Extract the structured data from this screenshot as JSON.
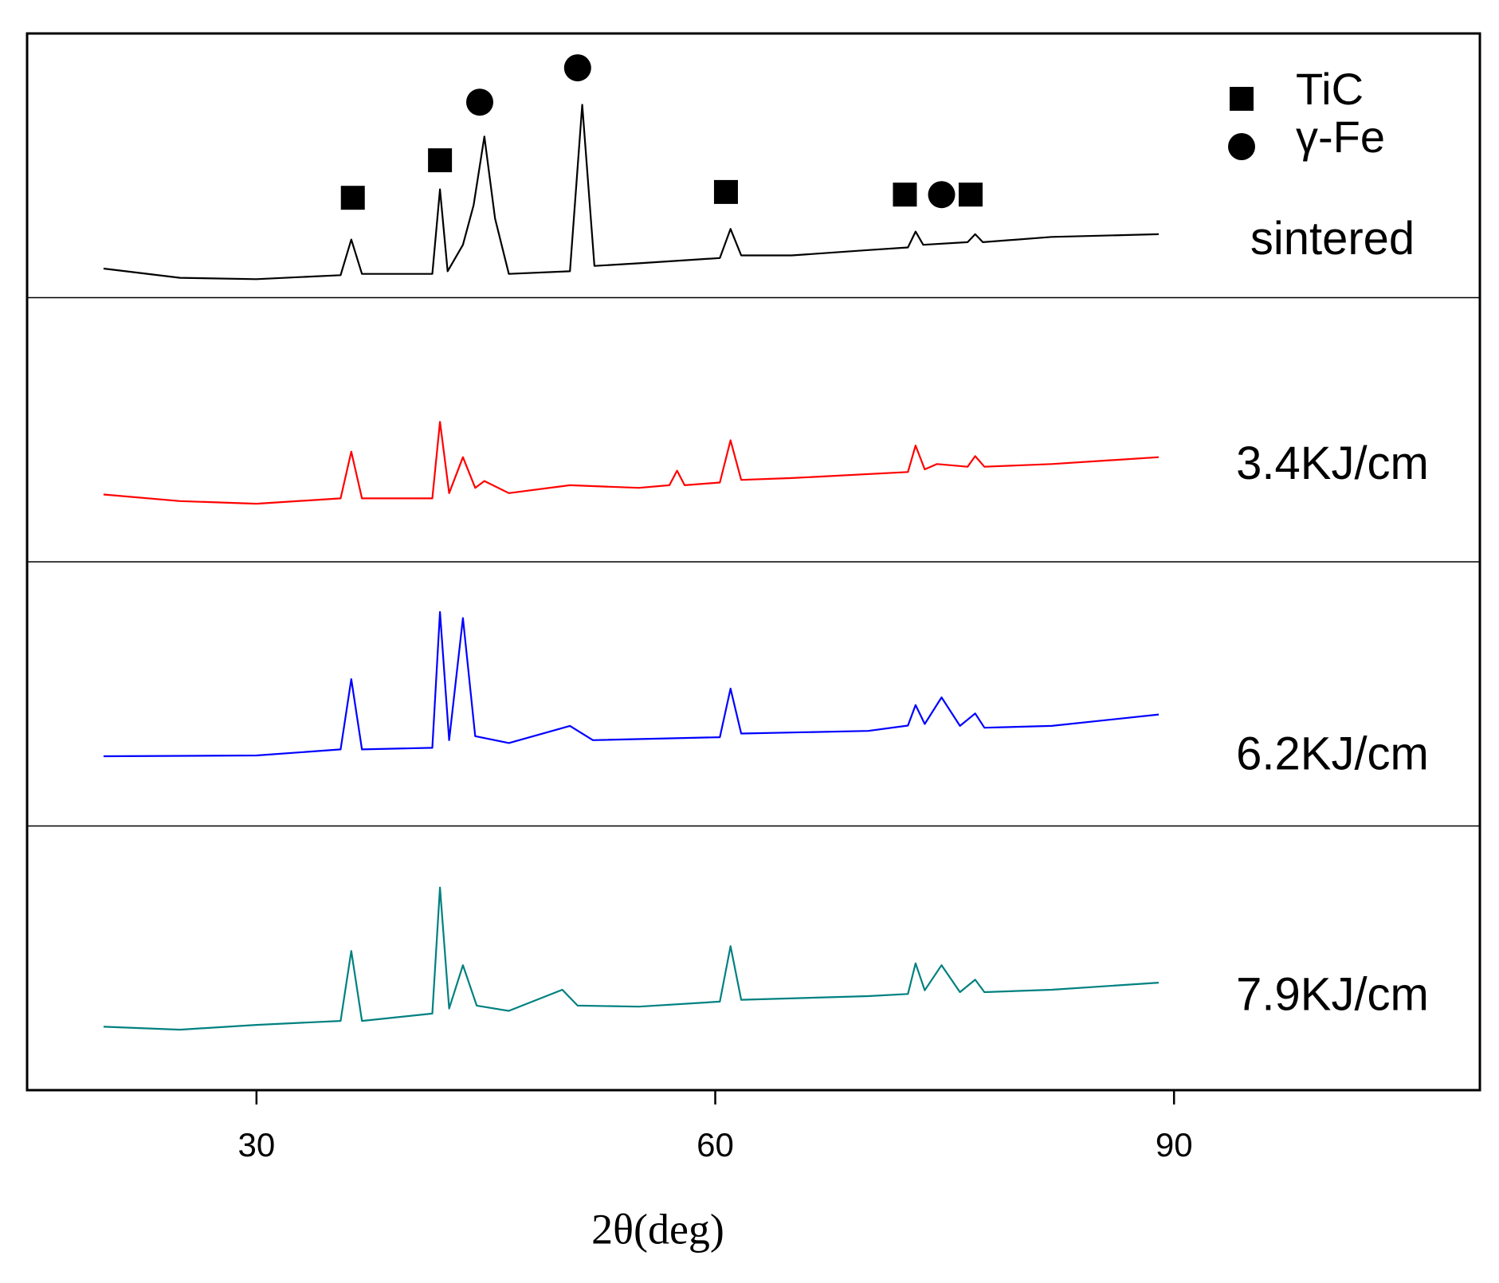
{
  "chart_data": [
    {
      "type": "line",
      "ylim": [
        0,
        100
      ],
      "x": [
        20,
        25,
        30,
        35.5,
        36.2,
        36.9,
        41.5,
        42.0,
        42.5,
        43.5,
        44.2,
        44.9,
        45.6,
        46.5,
        50.5,
        51.3,
        52.1,
        55,
        60.3,
        61.0,
        61.7,
        65,
        70,
        72.6,
        73.1,
        73.6,
        76.5,
        77.0,
        77.5,
        82,
        89
      ],
      "series": [
        {
          "name": "sintered",
          "color": "#000000",
          "values": [
            11,
            7.5,
            7,
            8.5,
            22,
            9,
            9,
            41,
            10,
            20,
            35,
            61,
            30,
            9,
            10,
            73,
            12,
            13,
            15,
            26,
            16,
            16,
            18,
            19,
            25,
            20,
            21,
            24,
            21,
            23,
            24
          ]
        }
      ],
      "annotations": [
        {
          "shape": "square",
          "x": 36.3,
          "y": 37.8
        },
        {
          "shape": "square",
          "x": 42.0,
          "y": 52
        },
        {
          "shape": "circle",
          "x": 44.6,
          "y": 74
        },
        {
          "shape": "circle",
          "x": 51.0,
          "y": 87
        },
        {
          "shape": "square",
          "x": 60.7,
          "y": 40
        },
        {
          "shape": "square",
          "x": 72.4,
          "y": 39
        },
        {
          "shape": "circle",
          "x": 74.8,
          "y": 39
        },
        {
          "shape": "square",
          "x": 76.7,
          "y": 39
        }
      ],
      "legend": [
        {
          "name": "TiC",
          "shape": "square"
        },
        {
          "name": "γ-Fe",
          "shape": "circle"
        }
      ]
    },
    {
      "type": "line",
      "ylim": [
        0,
        100
      ],
      "x": [
        20,
        25,
        30,
        35.5,
        36.2,
        36.9,
        41.5,
        42.0,
        42.6,
        43.5,
        44.3,
        44.9,
        46.5,
        50.5,
        55,
        57.0,
        57.5,
        58.0,
        60.3,
        61.0,
        61.7,
        65,
        72.6,
        73.1,
        73.7,
        74.5,
        76.5,
        77.0,
        77.6,
        82,
        89
      ],
      "series": [
        {
          "name": "3.4KJ/cm",
          "color": "#ff0000",
          "values": [
            25.5,
            23,
            22,
            24,
            41.7,
            24,
            24,
            53,
            26,
            39.6,
            28,
            30.6,
            26,
            29,
            28,
            29,
            34.5,
            29,
            30,
            46,
            31,
            31.7,
            34,
            44,
            35,
            37,
            36,
            40,
            36,
            37,
            39.6
          ]
        }
      ]
    },
    {
      "type": "line",
      "ylim": [
        0,
        100
      ],
      "x": [
        20,
        30,
        35.5,
        36.2,
        36.9,
        41.5,
        42.0,
        42.6,
        43.5,
        44.3,
        46.5,
        50.5,
        52,
        60.3,
        61.0,
        61.7,
        70,
        72.6,
        73.1,
        73.7,
        74.8,
        76.0,
        77.0,
        77.6,
        82,
        89
      ],
      "series": [
        {
          "name": "6.2KJ/cm",
          "color": "#0000ff",
          "values": [
            26.4,
            26.7,
            29,
            55.6,
            29,
            29.6,
            81,
            32.5,
            78.7,
            34,
            31.4,
            37.9,
            32.5,
            33.6,
            52,
            35,
            36,
            38,
            45.8,
            38.6,
            48.7,
            37.9,
            42.6,
            37.2,
            37.9,
            42.2
          ]
        }
      ]
    },
    {
      "type": "line",
      "ylim": [
        0,
        100
      ],
      "xlim": [
        15,
        110
      ],
      "xticks": [
        30,
        60,
        90
      ],
      "x_label": "2θ(deg)",
      "x": [
        20,
        25,
        30,
        35.5,
        36.2,
        36.9,
        41.5,
        42.0,
        42.6,
        43.5,
        44.4,
        46.5,
        50.0,
        51.0,
        55,
        60.3,
        61.0,
        61.7,
        70,
        72.6,
        73.1,
        73.7,
        74.8,
        76.0,
        77.0,
        77.6,
        82,
        89
      ],
      "series": [
        {
          "name": "7.9KJ/cm",
          "color": "#008080",
          "values": [
            24,
            22.9,
            24.7,
            26.2,
            52.7,
            26.2,
            29,
            76.7,
            30.9,
            47.3,
            32,
            30,
            38,
            32,
            31.6,
            33.5,
            54.5,
            34.2,
            35.6,
            36.4,
            48,
            37.8,
            47.3,
            37.1,
            41.8,
            37.1,
            38,
            40.7
          ]
        }
      ]
    }
  ]
}
